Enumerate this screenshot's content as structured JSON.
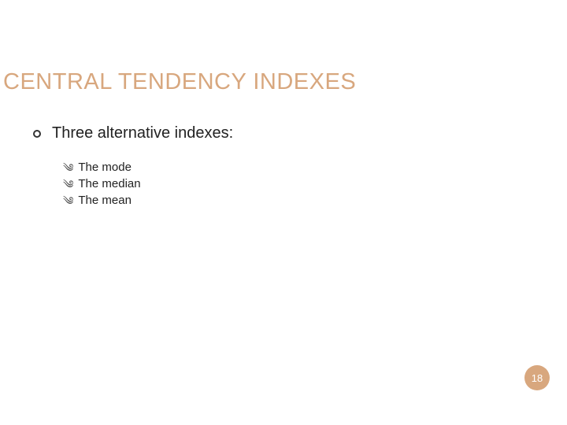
{
  "title": {
    "text": "CENTRAL TENDENCY INDEXES",
    "color": "#d8a77e",
    "fontsize": 29
  },
  "main": {
    "text": "Three alternative indexes:",
    "fontsize": 20,
    "bullet_color": "#333333"
  },
  "subitems": [
    {
      "text": "The mode"
    },
    {
      "text": "The median"
    },
    {
      "text": "The mean"
    }
  ],
  "sub_bullet_glyph": "༄",
  "page": {
    "number": "18",
    "badge_color": "#d8a77e",
    "text_color": "#ffffff"
  },
  "background_color": "#ffffff"
}
